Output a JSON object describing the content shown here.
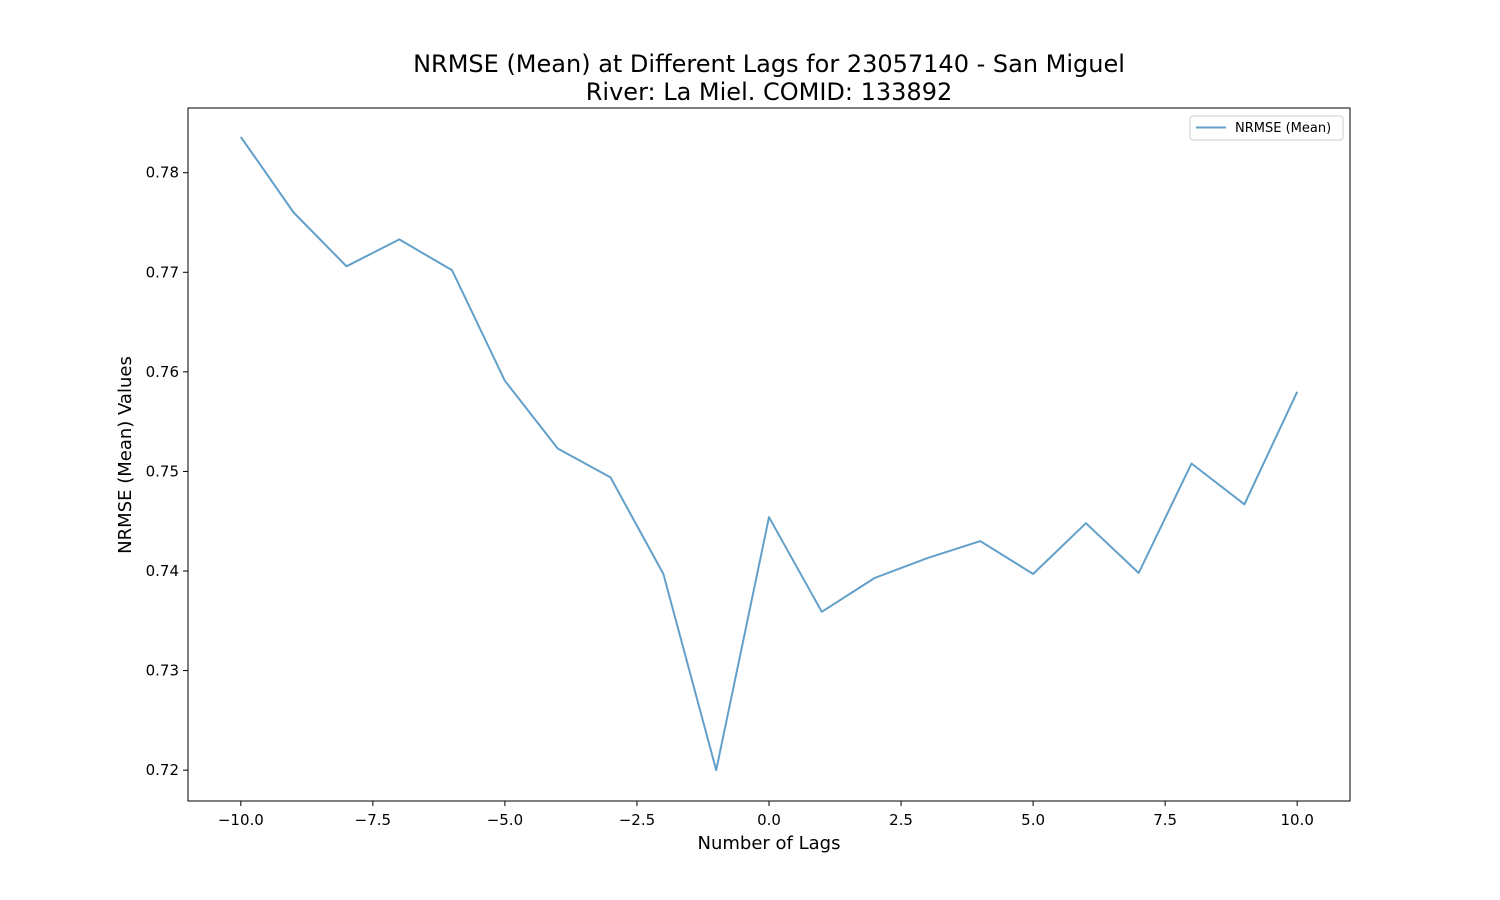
{
  "chart_data": {
    "type": "line",
    "title_lines": [
      "NRMSE (Mean) at Different Lags for 23057140 - San Miguel",
      "River: La Miel. COMID: 133892"
    ],
    "xlabel": "Number of Lags",
    "ylabel": "NRMSE (Mean) Values",
    "xlim": [
      -11,
      11
    ],
    "ylim": [
      0.7169,
      0.7865
    ],
    "xticks": [
      -10.0,
      -7.5,
      -5.0,
      -2.5,
      0.0,
      2.5,
      5.0,
      7.5,
      10.0
    ],
    "xtick_labels": [
      "−10.0",
      "−7.5",
      "−5.0",
      "−2.5",
      "0.0",
      "2.5",
      "5.0",
      "7.5",
      "10.0"
    ],
    "yticks": [
      0.72,
      0.73,
      0.74,
      0.75,
      0.76,
      0.77,
      0.78
    ],
    "ytick_labels": [
      "0.72",
      "0.73",
      "0.74",
      "0.75",
      "0.76",
      "0.77",
      "0.78"
    ],
    "grid": false,
    "legend_position": "upper right",
    "series": [
      {
        "name": "NRMSE (Mean)",
        "color": "#1f77b4",
        "x": [
          -10,
          -9,
          -8,
          -7,
          -6,
          -5,
          -4,
          -3,
          -2,
          -1,
          0,
          1,
          2,
          3,
          4,
          5,
          6,
          7,
          8,
          9,
          10
        ],
        "values": [
          0.7836,
          0.776,
          0.7706,
          0.7733,
          0.7702,
          0.7591,
          0.7523,
          0.7494,
          0.7397,
          0.72,
          0.7454,
          0.7359,
          0.7393,
          0.7413,
          0.743,
          0.7397,
          0.7448,
          0.7398,
          0.7508,
          0.7467,
          0.758
        ]
      }
    ]
  }
}
